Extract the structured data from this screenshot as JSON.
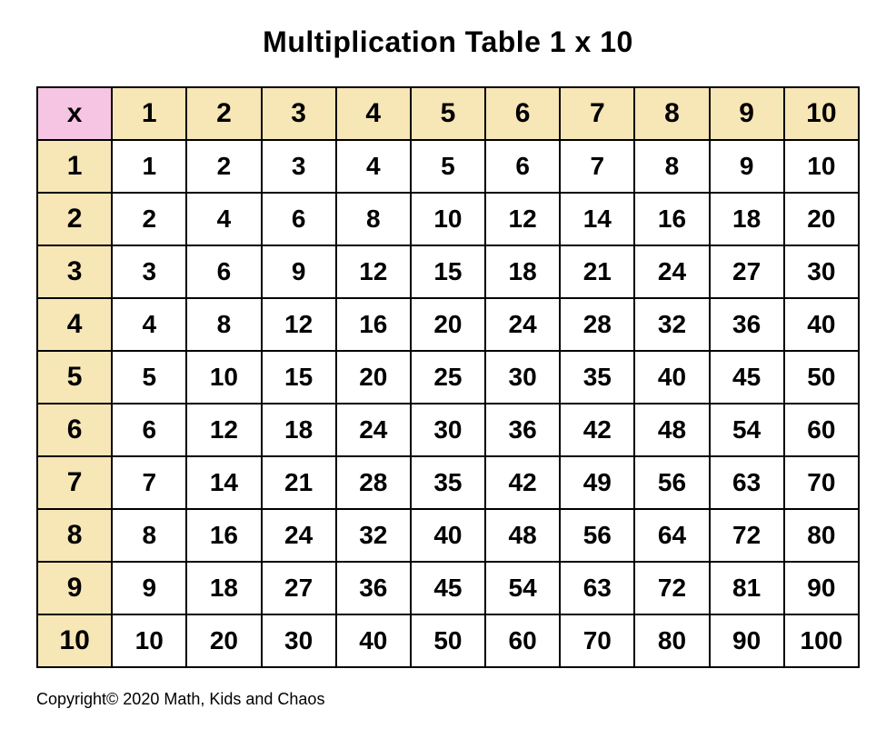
{
  "title": "Multiplication Table 1 x 10",
  "table": {
    "type": "table",
    "corner_symbol": "x",
    "column_headers": [
      "1",
      "2",
      "3",
      "4",
      "5",
      "6",
      "7",
      "8",
      "9",
      "10"
    ],
    "row_headers": [
      "1",
      "2",
      "3",
      "4",
      "5",
      "6",
      "7",
      "8",
      "9",
      "10"
    ],
    "rows": [
      [
        "1",
        "2",
        "3",
        "4",
        "5",
        "6",
        "7",
        "8",
        "9",
        "10"
      ],
      [
        "2",
        "4",
        "6",
        "8",
        "10",
        "12",
        "14",
        "16",
        "18",
        "20"
      ],
      [
        "3",
        "6",
        "9",
        "12",
        "15",
        "18",
        "21",
        "24",
        "27",
        "30"
      ],
      [
        "4",
        "8",
        "12",
        "16",
        "20",
        "24",
        "28",
        "32",
        "36",
        "40"
      ],
      [
        "5",
        "10",
        "15",
        "20",
        "25",
        "30",
        "35",
        "40",
        "45",
        "50"
      ],
      [
        "6",
        "12",
        "18",
        "24",
        "30",
        "36",
        "42",
        "48",
        "54",
        "60"
      ],
      [
        "7",
        "14",
        "21",
        "28",
        "35",
        "42",
        "49",
        "56",
        "63",
        "70"
      ],
      [
        "8",
        "16",
        "24",
        "32",
        "40",
        "48",
        "56",
        "64",
        "72",
        "80"
      ],
      [
        "9",
        "18",
        "27",
        "36",
        "45",
        "54",
        "63",
        "72",
        "81",
        "90"
      ],
      [
        "10",
        "20",
        "30",
        "40",
        "50",
        "60",
        "70",
        "80",
        "90",
        "100"
      ]
    ],
    "corner_bg": "#f6c5e3",
    "header_bg": "#f7e6b6",
    "cell_bg": "#ffffff",
    "border_color": "#000000",
    "header_fontsize": 30,
    "cell_fontsize": 28,
    "font_weight": 900,
    "text_color": "#000000"
  },
  "copyright": "Copyright© 2020 Math, Kids and Chaos"
}
